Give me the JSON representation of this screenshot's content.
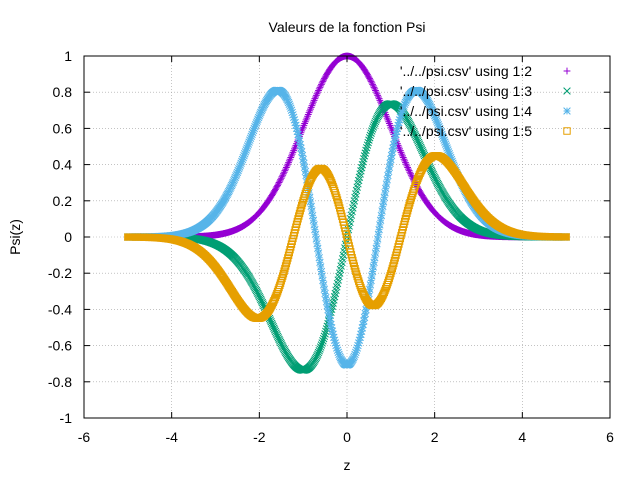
{
  "chart_data": {
    "type": "scatter",
    "title": "Valeurs de la fonction Psi",
    "xlabel": "z",
    "ylabel": "Psi(z)",
    "xlim": [
      -6,
      6
    ],
    "ylim": [
      -1,
      1
    ],
    "xticks": [
      -6,
      -4,
      -2,
      0,
      2,
      4,
      6
    ],
    "yticks": [
      -1,
      -0.8,
      -0.6,
      -0.4,
      -0.2,
      0,
      0.2,
      0.4,
      0.6,
      0.8,
      1
    ],
    "grid": true,
    "legend_position": "top-right",
    "x_range": [
      -5,
      5
    ],
    "series": [
      {
        "name": "'../../psi.csv' using 1:2",
        "color": "#9400d3",
        "marker": "plus",
        "formula": "exp(-x^2/2)"
      },
      {
        "name": "'../../psi.csv' using 1:3",
        "color": "#009e73",
        "marker": "cross",
        "formula": "1.2131*x*exp(-x^2/2)"
      },
      {
        "name": "'../../psi.csv' using 1:4",
        "color": "#56b4e9",
        "marker": "star",
        "formula": "0.7071*(2x^2-1)*exp(-x^2/2)"
      },
      {
        "name": "'../../psi.csv' using 1:5",
        "color": "#e69f00",
        "marker": "open-square",
        "formula": "0.3315*(2x^3-3x)*exp(-x^2/2)"
      }
    ]
  }
}
